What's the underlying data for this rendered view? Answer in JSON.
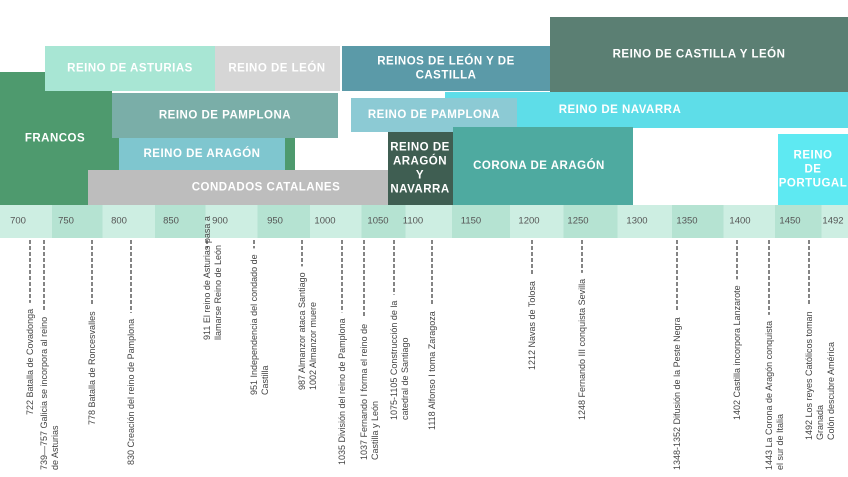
{
  "kingdoms": [
    {
      "lines": [
        "FRANCOS"
      ]
    },
    {
      "lines": [
        "REINO DE ASTURIAS"
      ]
    },
    {
      "lines": [
        "REINO DE LEÓN"
      ]
    },
    {
      "lines": [
        "REINOS DE LEÓN Y DE",
        "CASTILLA"
      ]
    },
    {
      "lines": [
        "REINO DE CASTILLA Y LEÓN"
      ]
    },
    {
      "lines": [
        "REINO DE PAMPLONA"
      ]
    },
    {
      "lines": [
        "REINO DE NAVARRA"
      ]
    },
    {
      "lines": [
        "REINO DE PAMPLONA"
      ]
    },
    {
      "lines": [
        "REINO DE ARAGÓN"
      ]
    },
    {
      "lines": [
        "CONDADOS CATALANES"
      ]
    },
    {
      "lines": [
        "REINO DE",
        "ARAGÓN",
        "Y",
        "NAVARRA"
      ]
    },
    {
      "lines": [
        "CORONA DE ARAGÓN"
      ]
    },
    {
      "lines": [
        "REINO",
        "DE",
        "PORTUGAL"
      ]
    }
  ],
  "axis": {
    "labels": [
      "700",
      "750",
      "800",
      "850",
      "900",
      "950",
      "1000",
      "1050",
      "1100",
      "1150",
      "1200",
      "1250",
      "1300",
      "1350",
      "1400",
      "1450",
      "1492"
    ]
  },
  "events": [
    {
      "lines": [
        "722 Batalla de Covadonga"
      ]
    },
    {
      "lines": [
        "739—757 Galicia se incorpora al reino",
        "de Asturias"
      ]
    },
    {
      "lines": [
        "778 Batalla de Roncesvalles"
      ]
    },
    {
      "lines": [
        "830 Creación del reino de Pamplona"
      ]
    },
    {
      "lines": [
        "911 El reino de Asturias pasa a",
        "llamarse Reino de León"
      ]
    },
    {
      "lines": [
        "951 Independencia del condado de",
        "Castilla"
      ]
    },
    {
      "lines": [
        "987 Almanzor ataca Santiago",
        "1002 Almanzor muere"
      ]
    },
    {
      "lines": [
        "1035 División del reino de Pamplona"
      ]
    },
    {
      "lines": [
        "1037 Fernando I forma el reino de",
        "Castilla y León"
      ]
    },
    {
      "lines": [
        "1075-1105 Construcción de la",
        "catedral de Santiago"
      ]
    },
    {
      "lines": [
        "1118 Alfonso I toma Zaragoza"
      ]
    },
    {
      "lines": [
        "1212 Navas de Tolosa"
      ]
    },
    {
      "lines": [
        "1248 Fernando III conquista Sevilla"
      ]
    },
    {
      "lines": [
        "1348-1352 Difusión de la Peste Negra"
      ]
    },
    {
      "lines": [
        "1402 Castilla incorpora Lanzarote"
      ]
    },
    {
      "lines": [
        "1443 La Corona de Aragón conquista",
        "el sur de Italia"
      ]
    },
    {
      "lines": [
        "1492 Los reyes Católicos toman",
        "Granada",
        "Colón descubre América"
      ]
    }
  ]
}
